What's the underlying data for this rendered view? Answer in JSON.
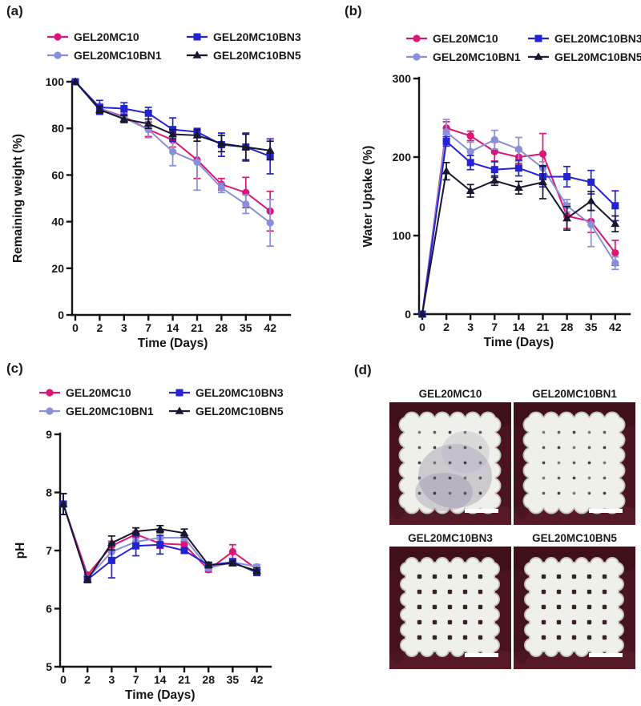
{
  "panels": {
    "a": {
      "label": "(a)"
    },
    "b": {
      "label": "(b)"
    },
    "c": {
      "label": "(c)"
    },
    "d": {
      "label": "(d)"
    }
  },
  "series_colors": {
    "GEL20MC10": "#DC1576",
    "GEL20MC10BN1": "#8A8FDA",
    "GEL20MC10BN3": "#2323D4",
    "GEL20MC10BN5": "#17172E"
  },
  "chart_data": [
    {
      "panel": "a",
      "type": "line",
      "title": "",
      "xlabel": "Time (Days)",
      "ylabel": "Remaining weight (%)",
      "x_categories": [
        "0",
        "2",
        "3",
        "7",
        "14",
        "21",
        "28",
        "35",
        "42"
      ],
      "ylim": [
        0,
        100
      ],
      "yticks": [
        0,
        20,
        40,
        60,
        80,
        100
      ],
      "legend_position": "top",
      "grid": false,
      "series": [
        {
          "name": "GEL20MC10",
          "marker": "circle",
          "color": "#DC1576",
          "values": [
            100,
            88.5,
            85,
            79.5,
            75,
            66.5,
            56,
            52.5,
            44.5
          ],
          "errors": [
            0,
            2,
            2,
            3,
            3,
            8,
            2.5,
            6.5,
            8.5
          ]
        },
        {
          "name": "GEL20MC10BN1",
          "marker": "circle",
          "color": "#8A8FDA",
          "values": [
            100,
            88.5,
            84.5,
            79.5,
            70,
            65.5,
            54.5,
            47.5,
            39.5
          ],
          "errors": [
            0,
            2,
            2,
            3.5,
            6,
            12,
            2,
            4,
            10
          ]
        },
        {
          "name": "GEL20MC10BN3",
          "marker": "square",
          "color": "#2323D4",
          "values": [
            100,
            89,
            88.5,
            86.5,
            79.5,
            78.5,
            73,
            72,
            68
          ],
          "errors": [
            0,
            3,
            2.5,
            2.5,
            5,
            1.5,
            5,
            6,
            7.5
          ]
        },
        {
          "name": "GEL20MC10BN5",
          "marker": "triangle",
          "color": "#17172E",
          "values": [
            100,
            88,
            84,
            82,
            77.5,
            77,
            73.5,
            72,
            70.5
          ],
          "errors": [
            0,
            1.5,
            1.5,
            2,
            2,
            2.5,
            3.5,
            5.5,
            4
          ]
        }
      ]
    },
    {
      "panel": "b",
      "type": "line",
      "title": "",
      "xlabel": "Time (Days)",
      "ylabel": "Water Uptake (%)",
      "x_categories": [
        "0",
        "2",
        "3",
        "7",
        "14",
        "21",
        "28",
        "35",
        "42"
      ],
      "ylim": [
        0,
        300
      ],
      "yticks": [
        0,
        100,
        200,
        300
      ],
      "legend_position": "top",
      "grid": false,
      "series": [
        {
          "name": "GEL20MC10",
          "marker": "circle",
          "color": "#DC1576",
          "values": [
            0,
            237,
            227,
            207,
            200,
            204,
            125,
            118,
            78
          ],
          "errors": [
            0,
            8,
            6,
            12,
            8,
            26,
            16,
            14,
            16
          ]
        },
        {
          "name": "GEL20MC10BN1",
          "marker": "circle",
          "color": "#8A8FDA",
          "values": [
            0,
            232,
            207,
            222,
            210,
            186,
            138,
            114,
            65
          ],
          "errors": [
            0,
            16,
            12,
            12,
            15,
            8,
            8,
            28,
            8
          ]
        },
        {
          "name": "GEL20MC10BN3",
          "marker": "square",
          "color": "#2323D4",
          "values": [
            0,
            220,
            193,
            184,
            186,
            175,
            175,
            168,
            138
          ],
          "errors": [
            0,
            6,
            9,
            10,
            10,
            13,
            13,
            15,
            19
          ]
        },
        {
          "name": "GEL20MC10BN5",
          "marker": "triangle",
          "color": "#17172E",
          "values": [
            0,
            182,
            157,
            170,
            161,
            168,
            122,
            144,
            115
          ],
          "errors": [
            0,
            11,
            8,
            6,
            8,
            21,
            15,
            12,
            10
          ]
        }
      ]
    },
    {
      "panel": "c",
      "type": "line",
      "title": "",
      "xlabel": "Time (Days)",
      "ylabel": "pH",
      "x_categories": [
        "0",
        "2",
        "3",
        "7",
        "14",
        "21",
        "28",
        "35",
        "42"
      ],
      "ylim": [
        5,
        9
      ],
      "yticks": [
        5,
        6,
        7,
        8,
        9
      ],
      "legend_position": "top",
      "grid": false,
      "series": [
        {
          "name": "GEL20MC10",
          "marker": "circle",
          "color": "#DC1576",
          "values": [
            7.8,
            6.58,
            7.08,
            7.28,
            7.12,
            7.1,
            6.67,
            6.98,
            6.68
          ],
          "errors": [
            0.18,
            0.04,
            0.08,
            0.05,
            0.08,
            0.05,
            0.04,
            0.12,
            0.04
          ]
        },
        {
          "name": "GEL20MC10BN1",
          "marker": "circle",
          "color": "#8A8FDA",
          "values": [
            7.8,
            6.52,
            6.98,
            7.15,
            7.22,
            7.22,
            6.7,
            6.8,
            6.72
          ],
          "errors": [
            0.18,
            0.04,
            0.12,
            0.06,
            0.08,
            0.05,
            0.04,
            0.05,
            0.04
          ]
        },
        {
          "name": "GEL20MC10BN3",
          "marker": "square",
          "color": "#2323D4",
          "values": [
            7.8,
            6.5,
            6.83,
            7.08,
            7.1,
            7.0,
            6.75,
            6.8,
            6.62
          ],
          "errors": [
            0.18,
            0.05,
            0.3,
            0.17,
            0.16,
            0.05,
            0.04,
            0.06,
            0.05
          ]
        },
        {
          "name": "GEL20MC10BN5",
          "marker": "triangle",
          "color": "#17172E",
          "values": [
            7.8,
            6.5,
            7.13,
            7.33,
            7.37,
            7.3,
            6.75,
            6.78,
            6.65
          ],
          "errors": [
            0.18,
            0.05,
            0.12,
            0.06,
            0.06,
            0.07,
            0.04,
            0.04,
            0.05
          ]
        }
      ]
    }
  ],
  "panel_d": {
    "background_color": "#4A141F",
    "scaffold_color": "#EEF0E9",
    "scale_bar_color": "#FFFFFF",
    "photos": [
      {
        "title": "GEL20MC10",
        "lattice": "soft",
        "melted_region": true
      },
      {
        "title": "GEL20MC10BN1",
        "lattice": "soft",
        "melted_region": false
      },
      {
        "title": "GEL20MC10BN3",
        "lattice": "defined",
        "melted_region": false
      },
      {
        "title": "GEL20MC10BN5",
        "lattice": "defined",
        "melted_region": false
      }
    ]
  }
}
